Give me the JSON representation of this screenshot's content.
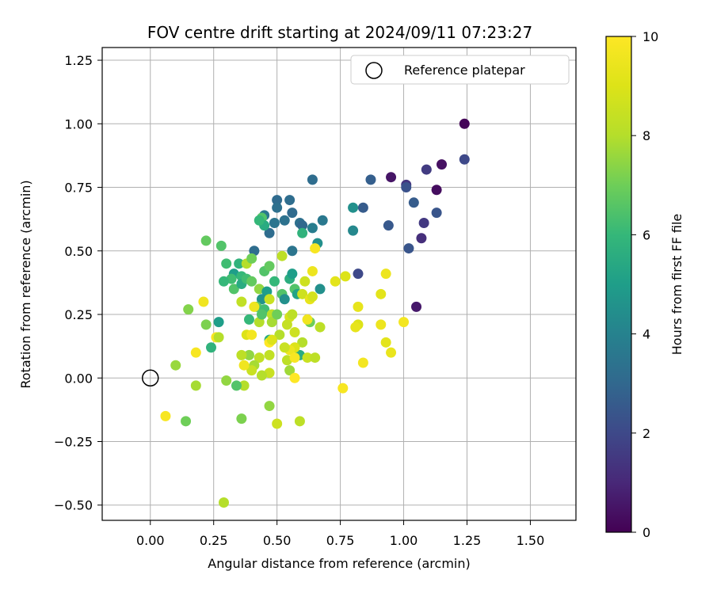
{
  "chart_data": {
    "type": "scatter",
    "title": "FOV centre drift starting at 2024/09/11 07:23:27",
    "xlabel": "Angular distance from reference (arcmin)",
    "ylabel": "Rotation from reference (arcmin)",
    "xlim": [
      -0.19,
      1.68
    ],
    "ylim": [
      -0.56,
      1.3
    ],
    "xticks": [
      0.0,
      0.25,
      0.5,
      0.75,
      1.0,
      1.25,
      1.5
    ],
    "xtick_labels": [
      "0.00",
      "0.25",
      "0.50",
      "0.75",
      "1.00",
      "1.25",
      "1.50"
    ],
    "yticks": [
      -0.5,
      -0.25,
      0.0,
      0.25,
      0.5,
      0.75,
      1.0,
      1.25
    ],
    "ytick_labels": [
      "−0.50",
      "−0.25",
      "0.00",
      "0.25",
      "0.50",
      "0.75",
      "1.00",
      "1.25"
    ],
    "grid": true,
    "legend": {
      "position": "top-right",
      "entries": [
        "Reference platepar"
      ]
    },
    "reference_point": {
      "x": 0.0,
      "y": 0.0
    },
    "colorbar": {
      "label": "Hours from first FF file",
      "min": 0,
      "max": 10,
      "ticks": [
        0,
        2,
        4,
        6,
        8,
        10
      ],
      "tick_labels": [
        "0",
        "2",
        "4",
        "6",
        "8",
        "10"
      ],
      "colormap": "viridis"
    },
    "series": [
      {
        "name": "Reference platepar",
        "points": []
      }
    ],
    "points": [
      {
        "x": 1.24,
        "y": 1.0,
        "c": 0.1
      },
      {
        "x": 1.24,
        "y": 0.86,
        "c": 2.0
      },
      {
        "x": 1.15,
        "y": 0.84,
        "c": 0.4
      },
      {
        "x": 1.09,
        "y": 0.82,
        "c": 1.6
      },
      {
        "x": 1.13,
        "y": 0.74,
        "c": 0.3
      },
      {
        "x": 0.95,
        "y": 0.79,
        "c": 0.5
      },
      {
        "x": 1.01,
        "y": 0.76,
        "c": 1.4
      },
      {
        "x": 1.01,
        "y": 0.75,
        "c": 2.3
      },
      {
        "x": 1.04,
        "y": 0.69,
        "c": 2.6
      },
      {
        "x": 1.13,
        "y": 0.65,
        "c": 2.4
      },
      {
        "x": 1.08,
        "y": 0.61,
        "c": 1.5
      },
      {
        "x": 1.07,
        "y": 0.55,
        "c": 1.2
      },
      {
        "x": 1.02,
        "y": 0.51,
        "c": 2.4
      },
      {
        "x": 0.94,
        "y": 0.6,
        "c": 2.5
      },
      {
        "x": 0.87,
        "y": 0.78,
        "c": 2.7
      },
      {
        "x": 0.84,
        "y": 0.67,
        "c": 2.6
      },
      {
        "x": 0.8,
        "y": 0.67,
        "c": 4.5
      },
      {
        "x": 0.8,
        "y": 0.58,
        "c": 4.2
      },
      {
        "x": 0.82,
        "y": 0.41,
        "c": 2.0
      },
      {
        "x": 1.05,
        "y": 0.28,
        "c": 0.6
      },
      {
        "x": 0.64,
        "y": 0.78,
        "c": 3.2
      },
      {
        "x": 0.5,
        "y": 0.7,
        "c": 3.1
      },
      {
        "x": 0.55,
        "y": 0.7,
        "c": 3.2
      },
      {
        "x": 0.5,
        "y": 0.67,
        "c": 3.3
      },
      {
        "x": 0.56,
        "y": 0.65,
        "c": 3.1
      },
      {
        "x": 0.53,
        "y": 0.62,
        "c": 3.4
      },
      {
        "x": 0.49,
        "y": 0.61,
        "c": 3.5
      },
      {
        "x": 0.59,
        "y": 0.61,
        "c": 3.3
      },
      {
        "x": 0.68,
        "y": 0.62,
        "c": 3.6
      },
      {
        "x": 0.64,
        "y": 0.59,
        "c": 3.8
      },
      {
        "x": 0.6,
        "y": 0.6,
        "c": 3.0
      },
      {
        "x": 0.47,
        "y": 0.57,
        "c": 3.2
      },
      {
        "x": 0.45,
        "y": 0.64,
        "c": 3.6
      },
      {
        "x": 0.44,
        "y": 0.63,
        "c": 6.5
      },
      {
        "x": 0.45,
        "y": 0.6,
        "c": 5.5
      },
      {
        "x": 0.43,
        "y": 0.62,
        "c": 6.0
      },
      {
        "x": 0.66,
        "y": 0.53,
        "c": 4.5
      },
      {
        "x": 0.6,
        "y": 0.57,
        "c": 5.8
      },
      {
        "x": 0.56,
        "y": 0.5,
        "c": 3.5
      },
      {
        "x": 0.41,
        "y": 0.5,
        "c": 3.2
      },
      {
        "x": 0.22,
        "y": 0.54,
        "c": 6.8
      },
      {
        "x": 0.28,
        "y": 0.52,
        "c": 6.5
      },
      {
        "x": 0.3,
        "y": 0.45,
        "c": 6.2
      },
      {
        "x": 0.33,
        "y": 0.41,
        "c": 5.0
      },
      {
        "x": 0.35,
        "y": 0.45,
        "c": 5.8
      },
      {
        "x": 0.38,
        "y": 0.45,
        "c": 8.0
      },
      {
        "x": 0.4,
        "y": 0.47,
        "c": 7.0
      },
      {
        "x": 0.52,
        "y": 0.48,
        "c": 8.2
      },
      {
        "x": 0.36,
        "y": 0.4,
        "c": 6.0
      },
      {
        "x": 0.32,
        "y": 0.39,
        "c": 6.2
      },
      {
        "x": 0.29,
        "y": 0.38,
        "c": 6.0
      },
      {
        "x": 0.33,
        "y": 0.35,
        "c": 6.5
      },
      {
        "x": 0.36,
        "y": 0.37,
        "c": 5.5
      },
      {
        "x": 0.38,
        "y": 0.39,
        "c": 6.2
      },
      {
        "x": 0.4,
        "y": 0.38,
        "c": 6.8
      },
      {
        "x": 0.43,
        "y": 0.35,
        "c": 7.5
      },
      {
        "x": 0.45,
        "y": 0.42,
        "c": 6.5
      },
      {
        "x": 0.47,
        "y": 0.44,
        "c": 6.8
      },
      {
        "x": 0.49,
        "y": 0.38,
        "c": 6.0
      },
      {
        "x": 0.46,
        "y": 0.34,
        "c": 5.0
      },
      {
        "x": 0.44,
        "y": 0.31,
        "c": 4.6
      },
      {
        "x": 0.42,
        "y": 0.28,
        "c": 6.6
      },
      {
        "x": 0.45,
        "y": 0.27,
        "c": 6.2
      },
      {
        "x": 0.47,
        "y": 0.31,
        "c": 8.5
      },
      {
        "x": 0.48,
        "y": 0.25,
        "c": 8.2
      },
      {
        "x": 0.48,
        "y": 0.22,
        "c": 7.8
      },
      {
        "x": 0.5,
        "y": 0.25,
        "c": 7.0
      },
      {
        "x": 0.52,
        "y": 0.33,
        "c": 6.5
      },
      {
        "x": 0.53,
        "y": 0.31,
        "c": 4.5
      },
      {
        "x": 0.55,
        "y": 0.39,
        "c": 5.6
      },
      {
        "x": 0.56,
        "y": 0.41,
        "c": 5.0
      },
      {
        "x": 0.57,
        "y": 0.35,
        "c": 6.5
      },
      {
        "x": 0.58,
        "y": 0.33,
        "c": 5.2
      },
      {
        "x": 0.61,
        "y": 0.38,
        "c": 8.6
      },
      {
        "x": 0.6,
        "y": 0.33,
        "c": 8.6
      },
      {
        "x": 0.63,
        "y": 0.31,
        "c": 9.3
      },
      {
        "x": 0.64,
        "y": 0.32,
        "c": 8.8
      },
      {
        "x": 0.67,
        "y": 0.35,
        "c": 4.5
      },
      {
        "x": 0.64,
        "y": 0.42,
        "c": 9.5
      },
      {
        "x": 0.65,
        "y": 0.51,
        "c": 9.8
      },
      {
        "x": 0.73,
        "y": 0.38,
        "c": 9.2
      },
      {
        "x": 0.77,
        "y": 0.4,
        "c": 9.0
      },
      {
        "x": 0.82,
        "y": 0.28,
        "c": 9.3
      },
      {
        "x": 0.93,
        "y": 0.41,
        "c": 9.5
      },
      {
        "x": 0.91,
        "y": 0.33,
        "c": 9.2
      },
      {
        "x": 0.82,
        "y": 0.21,
        "c": 9.0
      },
      {
        "x": 0.81,
        "y": 0.2,
        "c": 9.3
      },
      {
        "x": 0.91,
        "y": 0.21,
        "c": 9.5
      },
      {
        "x": 1.0,
        "y": 0.22,
        "c": 9.7
      },
      {
        "x": 0.93,
        "y": 0.14,
        "c": 9.2
      },
      {
        "x": 0.95,
        "y": 0.1,
        "c": 9.4
      },
      {
        "x": 0.84,
        "y": 0.06,
        "c": 9.7
      },
      {
        "x": 0.76,
        "y": -0.04,
        "c": 9.8
      },
      {
        "x": 0.67,
        "y": 0.2,
        "c": 8.2
      },
      {
        "x": 0.63,
        "y": 0.22,
        "c": 7.0
      },
      {
        "x": 0.62,
        "y": 0.23,
        "c": 9.6
      },
      {
        "x": 0.6,
        "y": 0.14,
        "c": 8.0
      },
      {
        "x": 0.59,
        "y": 0.09,
        "c": 5.5
      },
      {
        "x": 0.62,
        "y": 0.08,
        "c": 8.5
      },
      {
        "x": 0.65,
        "y": 0.08,
        "c": 8.2
      },
      {
        "x": 0.57,
        "y": 0.12,
        "c": 9.0
      },
      {
        "x": 0.55,
        "y": 0.11,
        "c": 9.5
      },
      {
        "x": 0.53,
        "y": 0.12,
        "c": 8.5
      },
      {
        "x": 0.54,
        "y": 0.07,
        "c": 8.2
      },
      {
        "x": 0.55,
        "y": 0.03,
        "c": 7.7
      },
      {
        "x": 0.57,
        "y": 0.08,
        "c": 9.8
      },
      {
        "x": 0.57,
        "y": 0.0,
        "c": 10.0
      },
      {
        "x": 0.55,
        "y": 0.24,
        "c": 8.8
      },
      {
        "x": 0.56,
        "y": 0.25,
        "c": 8.2
      },
      {
        "x": 0.57,
        "y": 0.18,
        "c": 8.6
      },
      {
        "x": 0.54,
        "y": 0.21,
        "c": 8.4
      },
      {
        "x": 0.51,
        "y": 0.17,
        "c": 8.0
      },
      {
        "x": 0.47,
        "y": 0.15,
        "c": 5.5
      },
      {
        "x": 0.47,
        "y": 0.14,
        "c": 10.0
      },
      {
        "x": 0.48,
        "y": 0.15,
        "c": 9.0
      },
      {
        "x": 0.47,
        "y": 0.09,
        "c": 8.3
      },
      {
        "x": 0.47,
        "y": 0.02,
        "c": 8.5
      },
      {
        "x": 0.44,
        "y": 0.01,
        "c": 8.0
      },
      {
        "x": 0.43,
        "y": 0.08,
        "c": 8.3
      },
      {
        "x": 0.41,
        "y": 0.05,
        "c": 7.8
      },
      {
        "x": 0.4,
        "y": 0.03,
        "c": 8.5
      },
      {
        "x": 0.39,
        "y": 0.09,
        "c": 7.5
      },
      {
        "x": 0.38,
        "y": 0.17,
        "c": 9.0
      },
      {
        "x": 0.4,
        "y": 0.17,
        "c": 9.7
      },
      {
        "x": 0.41,
        "y": 0.28,
        "c": 9.5
      },
      {
        "x": 0.43,
        "y": 0.22,
        "c": 8.0
      },
      {
        "x": 0.44,
        "y": 0.25,
        "c": 6.5
      },
      {
        "x": 0.39,
        "y": 0.23,
        "c": 6.0
      },
      {
        "x": 0.36,
        "y": 0.3,
        "c": 8.3
      },
      {
        "x": 0.37,
        "y": 0.05,
        "c": 9.6
      },
      {
        "x": 0.36,
        "y": 0.09,
        "c": 8.2
      },
      {
        "x": 0.37,
        "y": -0.03,
        "c": 8.0
      },
      {
        "x": 0.34,
        "y": -0.03,
        "c": 6.5
      },
      {
        "x": 0.3,
        "y": -0.01,
        "c": 7.5
      },
      {
        "x": 0.36,
        "y": -0.16,
        "c": 7.2
      },
      {
        "x": 0.47,
        "y": -0.11,
        "c": 7.5
      },
      {
        "x": 0.5,
        "y": -0.18,
        "c": 8.6
      },
      {
        "x": 0.59,
        "y": -0.17,
        "c": 8.2
      },
      {
        "x": 0.29,
        "y": -0.49,
        "c": 8.0
      },
      {
        "x": 0.14,
        "y": -0.17,
        "c": 7.0
      },
      {
        "x": 0.06,
        "y": -0.15,
        "c": 9.8
      },
      {
        "x": 0.1,
        "y": 0.05,
        "c": 7.6
      },
      {
        "x": 0.18,
        "y": -0.03,
        "c": 7.8
      },
      {
        "x": 0.22,
        "y": 0.21,
        "c": 7.2
      },
      {
        "x": 0.15,
        "y": 0.27,
        "c": 7.3
      },
      {
        "x": 0.21,
        "y": 0.3,
        "c": 9.6
      },
      {
        "x": 0.18,
        "y": 0.1,
        "c": 9.8
      },
      {
        "x": 0.24,
        "y": 0.12,
        "c": 5.8
      },
      {
        "x": 0.26,
        "y": 0.16,
        "c": 9.8
      },
      {
        "x": 0.27,
        "y": 0.16,
        "c": 8.0
      },
      {
        "x": 0.27,
        "y": 0.22,
        "c": 5.0
      }
    ]
  }
}
